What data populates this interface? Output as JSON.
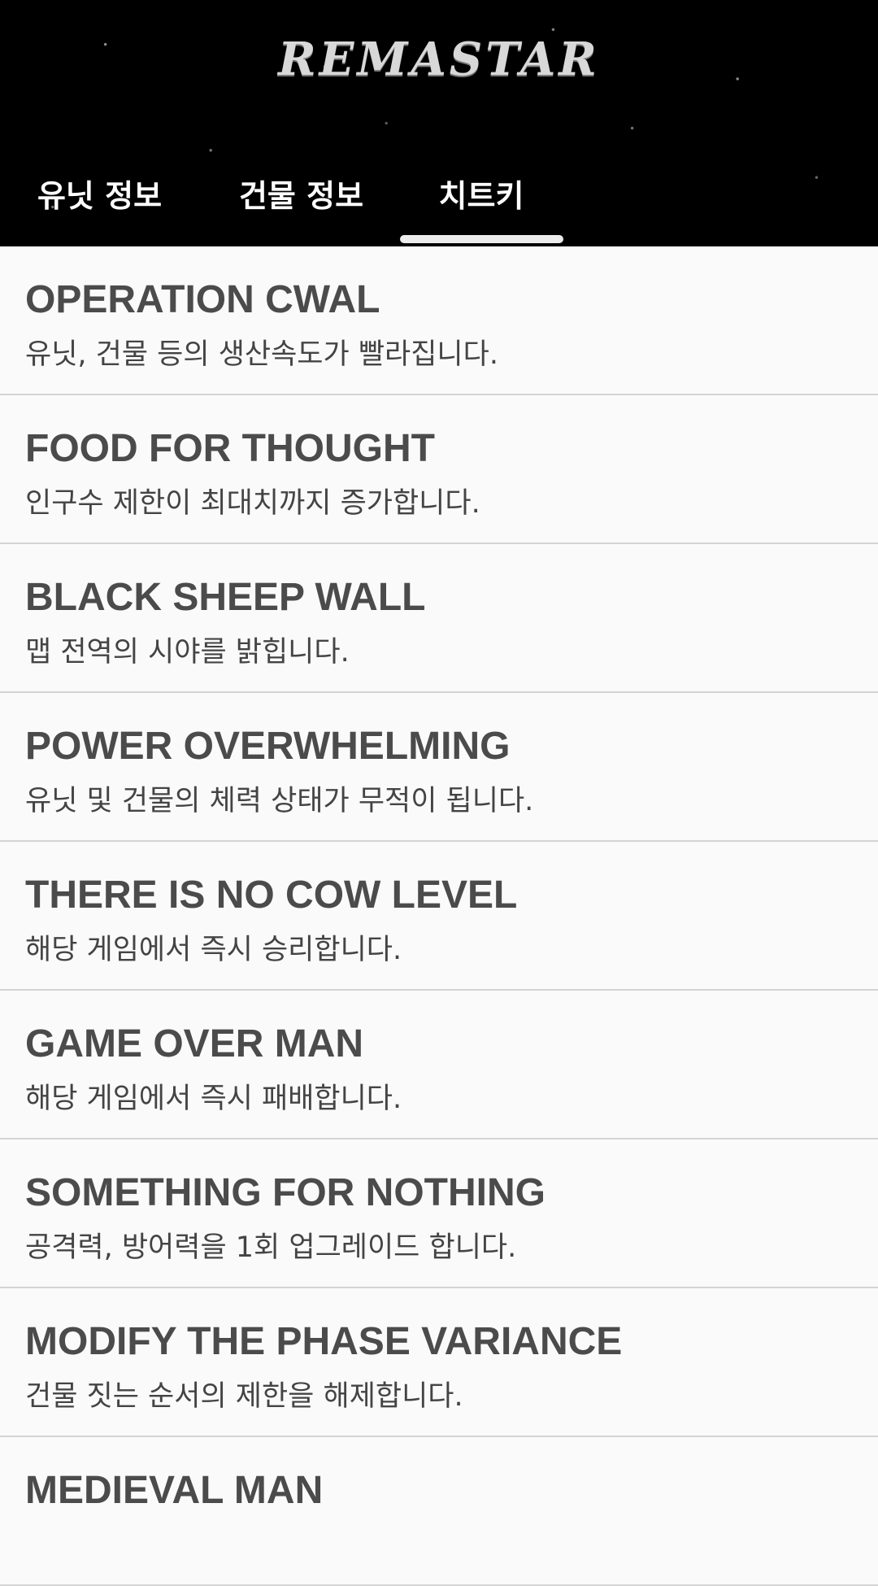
{
  "header": {
    "logo_text": "REMASTAR"
  },
  "tabs": [
    {
      "label": "유닛 정보"
    },
    {
      "label": "건물 정보"
    },
    {
      "label": "치트키"
    }
  ],
  "active_tab": "치트키",
  "cheats": [
    {
      "title": "OPERATION CWAL",
      "desc": "유닛, 건물 등의 생산속도가 빨라집니다."
    },
    {
      "title": "FOOD FOR THOUGHT",
      "desc": "인구수 제한이 최대치까지 증가합니다."
    },
    {
      "title": "BLACK SHEEP WALL",
      "desc": "맵 전역의 시야를 밝힙니다."
    },
    {
      "title": "POWER OVERWHELMING",
      "desc": "유닛 및 건물의 체력 상태가 무적이 됩니다."
    },
    {
      "title": "THERE IS NO COW LEVEL",
      "desc": "해당 게임에서 즉시 승리합니다."
    },
    {
      "title": "GAME OVER MAN",
      "desc": "해당 게임에서 즉시 패배합니다."
    },
    {
      "title": "SOMETHING FOR NOTHING",
      "desc": "공격력, 방어력을 1회 업그레이드 합니다."
    },
    {
      "title": "MODIFY THE PHASE VARIANCE",
      "desc": "건물 짓는 순서의 제한을 해제합니다."
    },
    {
      "title": "MEDIEVAL MAN",
      "desc": ""
    }
  ]
}
